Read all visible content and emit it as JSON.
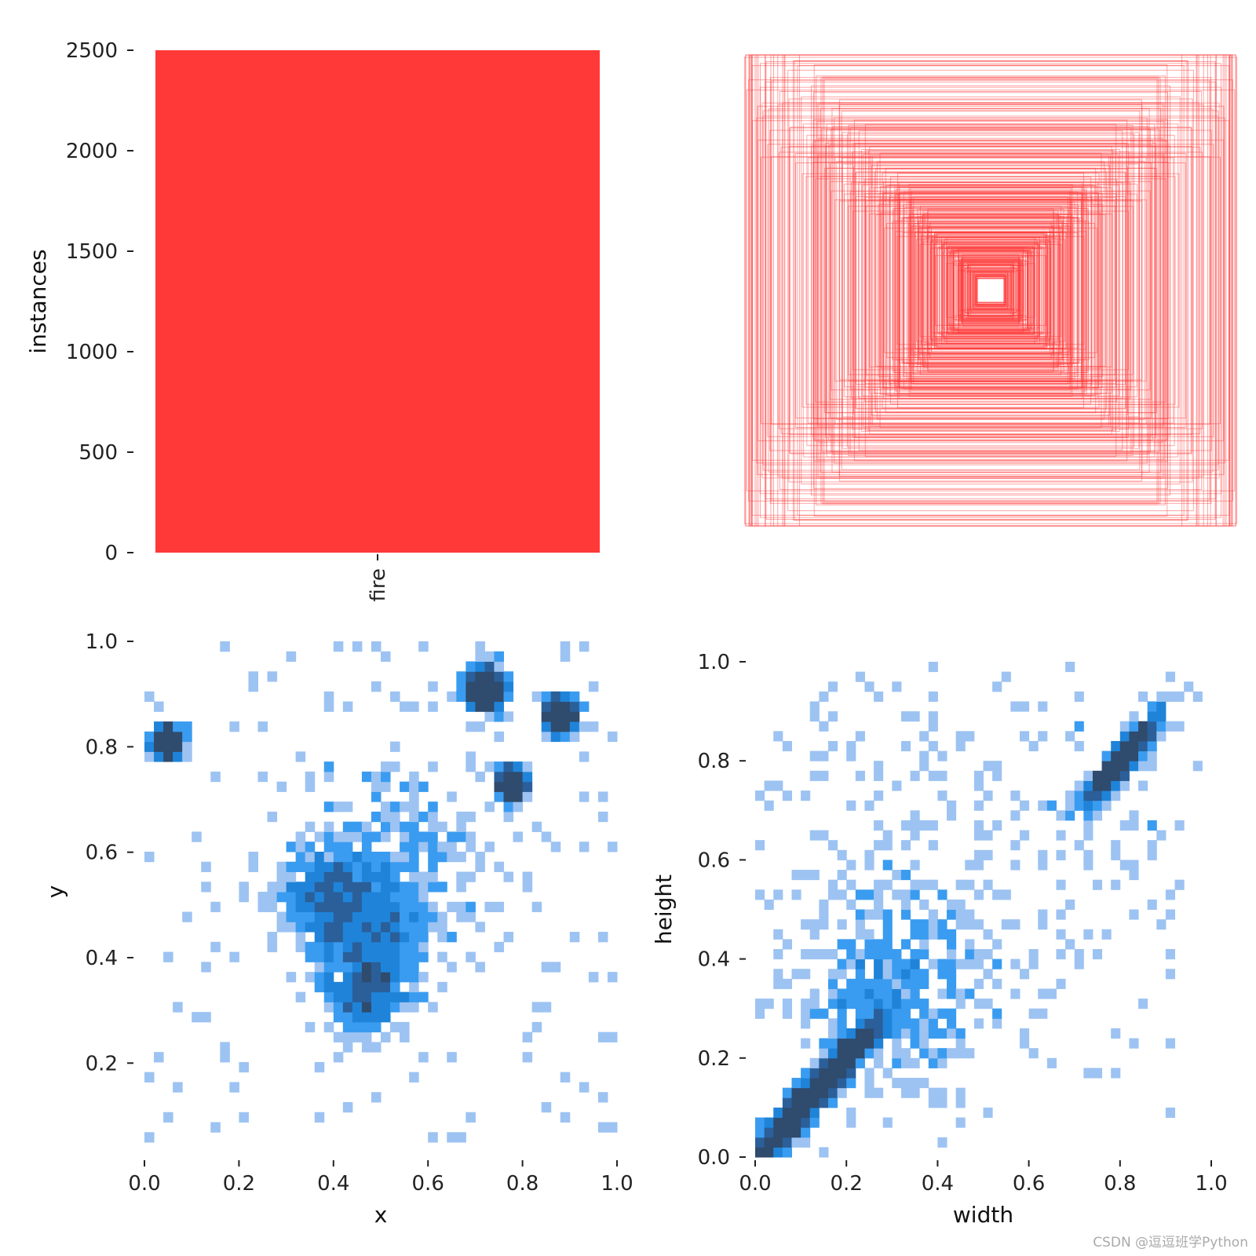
{
  "colors": {
    "bar": "#ff3838",
    "box_stroke": "#ff3838",
    "hist_levels": [
      "#ffffff",
      "#9dc3f2",
      "#3a9cf0",
      "#1f84d9",
      "#2a5f9a",
      "#2f4b6d"
    ]
  },
  "watermark": "CSDN @逗逗班学Python",
  "chart_data": [
    {
      "type": "bar",
      "panel": "top-left",
      "categories": [
        "fire"
      ],
      "values": [
        2500
      ],
      "ylabel": "instances",
      "xlabel": "",
      "ylim": [
        0,
        2500
      ],
      "yticks": [
        0,
        500,
        1000,
        1500,
        2000,
        2500
      ],
      "ytick_labels": [
        "0",
        "500",
        "1000",
        "1500",
        "2000",
        "2500"
      ],
      "grid": false
    },
    {
      "type": "boxes",
      "panel": "top-right",
      "description_unit": "normalized width/height of centered bounding boxes",
      "approx_box_count": 420,
      "width_range": [
        0.05,
        1.0
      ],
      "height_range": [
        0.05,
        1.0
      ],
      "axes_visible": false
    },
    {
      "type": "heatmap",
      "panel": "bottom-left",
      "xlabel": "x",
      "ylabel": "y",
      "xlim": [
        0,
        1
      ],
      "ylim": [
        0.05,
        1.0
      ],
      "xticks": [
        0.0,
        0.2,
        0.4,
        0.6,
        0.8,
        1.0
      ],
      "xtick_labels": [
        "0.0",
        "0.2",
        "0.4",
        "0.6",
        "0.8",
        "1.0"
      ],
      "yticks": [
        0.2,
        0.4,
        0.6,
        0.8,
        1.0
      ],
      "ytick_labels": [
        "0.2",
        "0.4",
        "0.6",
        "0.8",
        "1.0"
      ],
      "bins": 50,
      "hotspots": [
        {
          "x": 0.48,
          "y": 0.45,
          "spread": 0.07,
          "weight": 1.0
        },
        {
          "x": 0.39,
          "y": 0.52,
          "spread": 0.05,
          "weight": 0.7
        },
        {
          "x": 0.47,
          "y": 0.34,
          "spread": 0.04,
          "weight": 0.6
        },
        {
          "x": 0.72,
          "y": 0.91,
          "spread": 0.02,
          "weight": 0.8
        },
        {
          "x": 0.88,
          "y": 0.86,
          "spread": 0.015,
          "weight": 0.7
        },
        {
          "x": 0.78,
          "y": 0.73,
          "spread": 0.015,
          "weight": 0.5
        },
        {
          "x": 0.05,
          "y": 0.81,
          "spread": 0.015,
          "weight": 0.5
        },
        {
          "x": 0.55,
          "y": 0.62,
          "spread": 0.1,
          "weight": 0.4
        }
      ],
      "grid": false
    },
    {
      "type": "heatmap",
      "panel": "bottom-right",
      "xlabel": "width",
      "ylabel": "height",
      "xlim": [
        0,
        1
      ],
      "ylim": [
        0,
        1
      ],
      "xticks": [
        0.0,
        0.2,
        0.4,
        0.6,
        0.8,
        1.0
      ],
      "xtick_labels": [
        "0.0",
        "0.2",
        "0.4",
        "0.6",
        "0.8",
        "1.0"
      ],
      "yticks": [
        0.0,
        0.2,
        0.4,
        0.6,
        0.8,
        1.0
      ],
      "ytick_labels": [
        "0.0",
        "0.2",
        "0.4",
        "0.6",
        "0.8",
        "1.0"
      ],
      "bins": 50,
      "hotspots": [
        {
          "x": 0.1,
          "y": 0.1,
          "spread": 0.04,
          "weight": 1.0
        },
        {
          "x": 0.18,
          "y": 0.17,
          "spread": 0.04,
          "weight": 0.8
        },
        {
          "x": 0.3,
          "y": 0.35,
          "spread": 0.1,
          "weight": 0.5
        },
        {
          "x": 0.8,
          "y": 0.88,
          "spread": 0.03,
          "weight": 0.6
        },
        {
          "x": 0.5,
          "y": 0.55,
          "spread": 0.25,
          "weight": 0.25
        }
      ],
      "grid": false
    }
  ]
}
